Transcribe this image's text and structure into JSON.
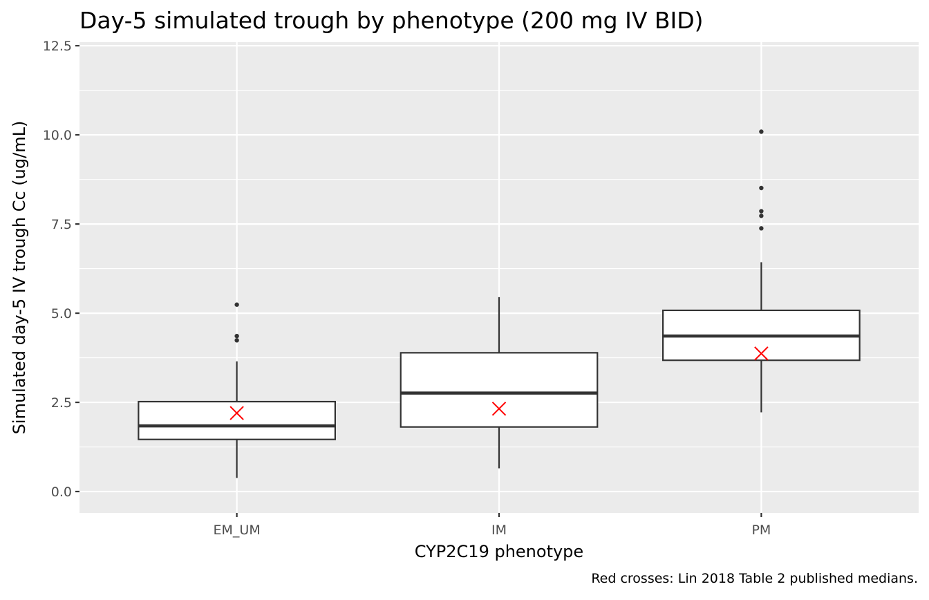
{
  "chart_data": {
    "type": "boxplot",
    "title": "Day-5 simulated trough by phenotype (200 mg IV BID)",
    "xlabel": "CYP2C19 phenotype",
    "ylabel": "Simulated day-5 IV trough Cc (ug/mL)",
    "caption": "Red crosses: Lin 2018 Table 2 published medians.",
    "categories": [
      "EM_UM",
      "IM",
      "PM"
    ],
    "ylim": [
      -0.6,
      12.6
    ],
    "yticks": [
      0.0,
      2.5,
      5.0,
      7.5,
      10.0,
      12.5
    ],
    "ytick_labels": [
      "0.0",
      "2.5",
      "5.0",
      "7.5",
      "10.0",
      "12.5"
    ],
    "grid": true,
    "boxes": [
      {
        "category": "EM_UM",
        "whisker_low": 0.38,
        "q1": 1.46,
        "median": 1.84,
        "q3": 2.52,
        "whisker_high": 3.65,
        "outliers": [
          4.24,
          4.36,
          5.24
        ]
      },
      {
        "category": "IM",
        "whisker_low": 0.65,
        "q1": 1.81,
        "median": 2.76,
        "q3": 3.89,
        "whisker_high": 5.45,
        "outliers": []
      },
      {
        "category": "PM",
        "whisker_low": 2.22,
        "q1": 3.68,
        "median": 4.36,
        "q3": 5.08,
        "whisker_high": 6.43,
        "outliers": [
          7.38,
          7.73,
          7.86,
          8.51,
          10.09
        ]
      }
    ],
    "published_medians": [
      {
        "category": "EM_UM",
        "value": 2.2
      },
      {
        "category": "IM",
        "value": 2.32
      },
      {
        "category": "PM",
        "value": 3.87
      }
    ],
    "colors": {
      "panel_background": "#ebebeb",
      "grid": "#ffffff",
      "box_fill": "#ffffff",
      "box_line": "#333333",
      "outlier": "#333333",
      "cross": "#ff0000"
    }
  }
}
